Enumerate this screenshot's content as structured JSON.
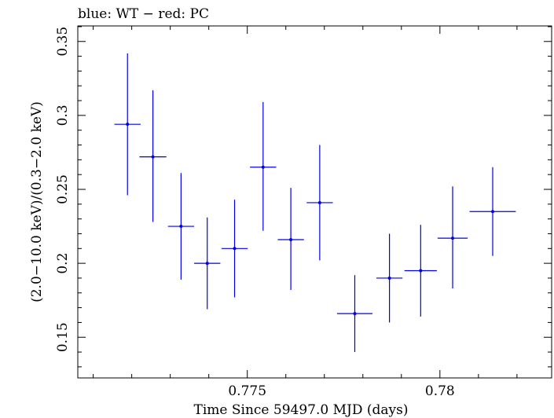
{
  "chart_data": {
    "type": "scatter",
    "title": "blue: WT − red: PC",
    "xlabel": "Time Since 59497.0 MJD (days)",
    "ylabel": "(2.0−10.0 keV)/(0.3−2.0 keV)",
    "xlim": [
      0.7706,
      0.7829
    ],
    "ylim": [
      0.1225,
      0.3605
    ],
    "x_ticks": [
      0.775,
      0.78
    ],
    "x_tick_labels": [
      "0.775",
      "0.78"
    ],
    "y_ticks": [
      0.15,
      0.2,
      0.25,
      0.3,
      0.35
    ],
    "y_tick_labels": [
      "0.15",
      "0.2",
      "0.25",
      "0.3",
      "0.35"
    ],
    "grid": false,
    "colors": {
      "series": "#0000e6",
      "axes": "#000000"
    },
    "series": [
      {
        "points": [
          {
            "x": 0.77189,
            "xerr": 0.00034,
            "y": 0.294,
            "yerr_low": 0.048,
            "yerr_high": 0.048
          },
          {
            "x": 0.77255,
            "xerr": 0.00035,
            "y": 0.272,
            "yerr_low": 0.044,
            "yerr_high": 0.045
          },
          {
            "x": 0.77328,
            "xerr": 0.00034,
            "y": 0.225,
            "yerr_low": 0.036,
            "yerr_high": 0.036
          },
          {
            "x": 0.77396,
            "xerr": 0.00034,
            "y": 0.2,
            "yerr_low": 0.031,
            "yerr_high": 0.031
          },
          {
            "x": 0.77467,
            "xerr": 0.00034,
            "y": 0.21,
            "yerr_low": 0.033,
            "yerr_high": 0.033
          },
          {
            "x": 0.77541,
            "xerr": 0.00034,
            "y": 0.265,
            "yerr_low": 0.043,
            "yerr_high": 0.044
          },
          {
            "x": 0.77613,
            "xerr": 0.00034,
            "y": 0.216,
            "yerr_low": 0.034,
            "yerr_high": 0.035
          },
          {
            "x": 0.77688,
            "xerr": 0.00034,
            "y": 0.241,
            "yerr_low": 0.039,
            "yerr_high": 0.039
          },
          {
            "x": 0.77779,
            "xerr": 0.00046,
            "y": 0.166,
            "yerr_low": 0.026,
            "yerr_high": 0.026
          },
          {
            "x": 0.77869,
            "xerr": 0.00034,
            "y": 0.19,
            "yerr_low": 0.03,
            "yerr_high": 0.03
          },
          {
            "x": 0.7795,
            "xerr": 0.00042,
            "y": 0.195,
            "yerr_low": 0.031,
            "yerr_high": 0.031
          },
          {
            "x": 0.78033,
            "xerr": 0.00039,
            "y": 0.217,
            "yerr_low": 0.034,
            "yerr_high": 0.035
          },
          {
            "x": 0.78137,
            "xerr": 0.0006,
            "y": 0.235,
            "yerr_low": 0.03,
            "yerr_high": 0.03
          }
        ]
      }
    ]
  }
}
